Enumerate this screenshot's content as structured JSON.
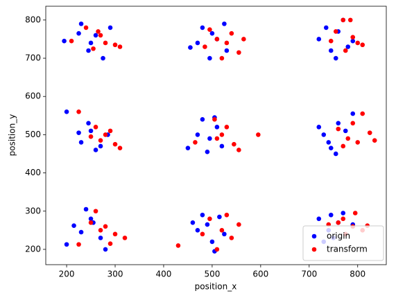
{
  "chart_data": {
    "type": "scatter",
    "xlabel": "position_x",
    "ylabel": "position_y",
    "xlim": [
      157,
      859
    ],
    "ylim": [
      160,
      836
    ],
    "xticks": [
      200,
      300,
      400,
      500,
      600,
      700,
      800
    ],
    "yticks": [
      200,
      300,
      400,
      500,
      600,
      700,
      800
    ],
    "legend": "lower right",
    "series": [
      {
        "name": "origin",
        "color": "#0000ff",
        "x": [
          195,
          230,
          245,
          260,
          275,
          290,
          250,
          225,
          480,
          495,
          510,
          470,
          525,
          455,
          500,
          530,
          720,
          745,
          770,
          760,
          735,
          790,
          755,
          780,
          200,
          230,
          250,
          270,
          285,
          245,
          225,
          260,
          450,
          480,
          495,
          510,
          470,
          520,
          490,
          505,
          720,
          740,
          760,
          790,
          745,
          775,
          730,
          755,
          200,
          240,
          255,
          270,
          230,
          280,
          250,
          215,
          480,
          470,
          500,
          515,
          490,
          525,
          505,
          460,
          720,
          740,
          770,
          760,
          730,
          790,
          750,
          745
        ],
        "values": [
          745,
          790,
          720,
          760,
          700,
          780,
          740,
          765,
          780,
          700,
          750,
          740,
          790,
          728,
          765,
          720,
          750,
          720,
          800,
          770,
          780,
          745,
          700,
          730,
          560,
          480,
          510,
          470,
          500,
          530,
          505,
          460,
          465,
          540,
          490,
          520,
          500,
          470,
          455,
          545,
          520,
          480,
          530,
          555,
          465,
          510,
          500,
          450,
          213,
          305,
          270,
          230,
          245,
          200,
          280,
          262,
          290,
          250,
          220,
          285,
          265,
          240,
          195,
          270,
          280,
          250,
          295,
          270,
          220,
          265,
          230,
          290
        ]
      },
      {
        "name": "transform",
        "color": "#ff0000",
        "x": [
          210,
          240,
          265,
          280,
          300,
          255,
          270,
          310,
          495,
          510,
          530,
          520,
          555,
          485,
          540,
          565,
          755,
          770,
          790,
          800,
          775,
          745,
          810,
          785,
          225,
          260,
          280,
          300,
          270,
          310,
          290,
          250,
          465,
          505,
          520,
          545,
          595,
          555,
          510,
          530,
          760,
          780,
          800,
          825,
          810,
          790,
          770,
          835,
          225,
          260,
          280,
          300,
          320,
          270,
          250,
          290,
          430,
          495,
          520,
          540,
          555,
          510,
          480,
          530,
          760,
          790,
          810,
          775,
          795,
          740,
          820,
          770
        ],
        "values": [
          745,
          780,
          770,
          740,
          735,
          725,
          760,
          730,
          775,
          750,
          740,
          700,
          715,
          730,
          765,
          750,
          770,
          800,
          755,
          740,
          720,
          745,
          735,
          800,
          560,
          520,
          500,
          475,
          485,
          465,
          510,
          495,
          480,
          540,
          500,
          475,
          500,
          460,
          490,
          520,
          515,
          490,
          480,
          505,
          555,
          530,
          470,
          485,
          213,
          300,
          260,
          240,
          230,
          250,
          270,
          215,
          210,
          280,
          250,
          230,
          265,
          200,
          240,
          290,
          270,
          260,
          250,
          240,
          295,
          265,
          262,
          280
        ]
      }
    ]
  }
}
